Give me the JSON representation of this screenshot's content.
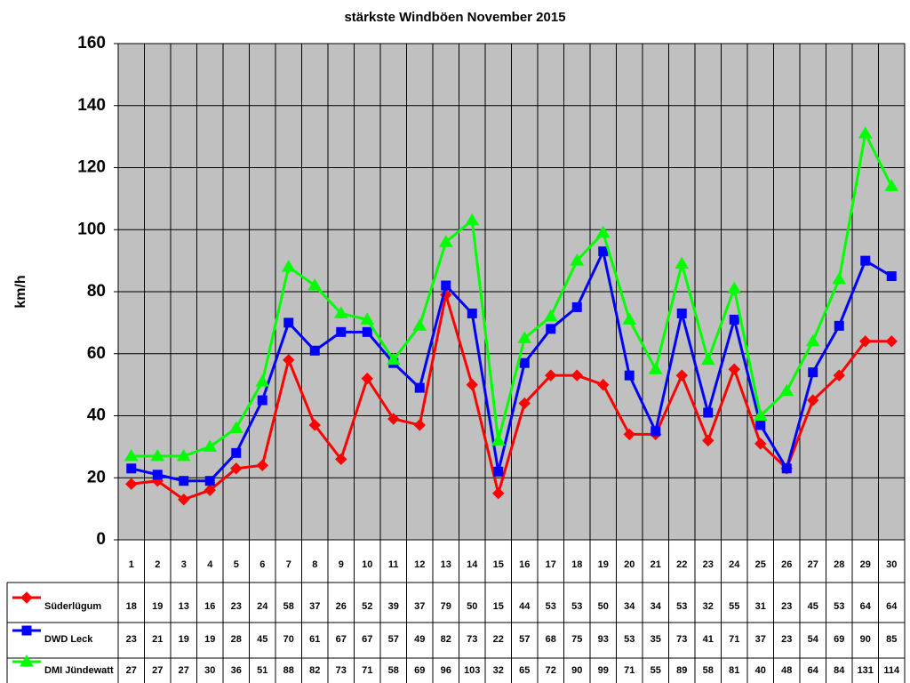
{
  "chart_data": {
    "type": "line",
    "title": "stärkste Windböen November 2015",
    "y_label": "km/h",
    "categories": [
      "1",
      "2",
      "3",
      "4",
      "5",
      "6",
      "7",
      "8",
      "9",
      "10",
      "11",
      "12",
      "13",
      "14",
      "15",
      "16",
      "17",
      "18",
      "19",
      "20",
      "21",
      "22",
      "23",
      "24",
      "25",
      "26",
      "27",
      "28",
      "29",
      "30"
    ],
    "series": [
      {
        "name": "Süderlügum",
        "color": "#ff0000",
        "marker": "diamond",
        "values": [
          18,
          19,
          13,
          16,
          23,
          24,
          58,
          37,
          26,
          52,
          39,
          37,
          79,
          50,
          15,
          44,
          53,
          53,
          50,
          34,
          34,
          53,
          32,
          55,
          31,
          23,
          45,
          53,
          64,
          64
        ]
      },
      {
        "name": "DWD Leck",
        "color": "#0000ff",
        "marker": "square",
        "values": [
          23,
          21,
          19,
          19,
          28,
          45,
          70,
          61,
          67,
          67,
          57,
          49,
          82,
          73,
          22,
          57,
          68,
          75,
          93,
          53,
          35,
          73,
          41,
          71,
          37,
          23,
          54,
          69,
          90,
          85
        ]
      },
      {
        "name": "DMI Jündewatt",
        "color": "#00ff00",
        "marker": "triangle",
        "values": [
          27,
          27,
          27,
          30,
          36,
          51,
          88,
          82,
          73,
          71,
          58,
          69,
          96,
          103,
          32,
          65,
          72,
          90,
          99,
          71,
          55,
          89,
          58,
          81,
          40,
          48,
          64,
          84,
          131,
          114
        ]
      }
    ],
    "ylim": [
      0,
      160
    ],
    "yticks": [
      0,
      20,
      40,
      60,
      80,
      100,
      120,
      140,
      160
    ],
    "grid": true,
    "plot_background": "#c0c0c0"
  }
}
